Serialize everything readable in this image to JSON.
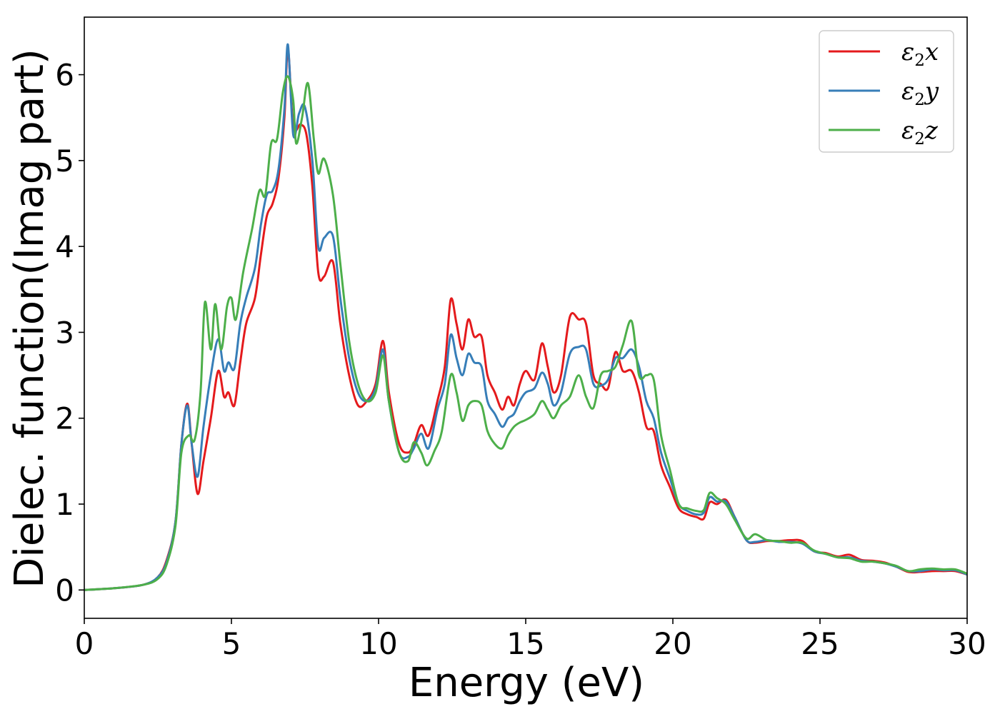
{
  "chart_data": {
    "type": "line",
    "xlabel": "Energy (eV)",
    "ylabel": "Dielec. function(Imag part)",
    "xlim": [
      0,
      30
    ],
    "ylim": [
      -0.33,
      6.67
    ],
    "xticks": [
      0,
      5,
      10,
      15,
      20,
      25,
      30
    ],
    "yticks": [
      0,
      1,
      2,
      3,
      4,
      5,
      6
    ],
    "grid": false,
    "legend_position": "top-right",
    "series": [
      {
        "name": "ε",
        "subscript": "2",
        "suffix": "x",
        "color": "#e41a1c",
        "points": [
          [
            0,
            0
          ],
          [
            1,
            0.02
          ],
          [
            2,
            0.06
          ],
          [
            2.5,
            0.15
          ],
          [
            2.8,
            0.35
          ],
          [
            3.1,
            0.8
          ],
          [
            3.3,
            1.7
          ],
          [
            3.5,
            2.17
          ],
          [
            3.65,
            1.7
          ],
          [
            3.85,
            1.12
          ],
          [
            4.05,
            1.5
          ],
          [
            4.3,
            2.0
          ],
          [
            4.55,
            2.55
          ],
          [
            4.75,
            2.25
          ],
          [
            4.9,
            2.3
          ],
          [
            5.1,
            2.15
          ],
          [
            5.3,
            2.65
          ],
          [
            5.5,
            3.1
          ],
          [
            5.8,
            3.4
          ],
          [
            6.0,
            3.9
          ],
          [
            6.2,
            4.35
          ],
          [
            6.4,
            4.5
          ],
          [
            6.6,
            4.8
          ],
          [
            6.8,
            5.5
          ],
          [
            6.92,
            6.3
          ],
          [
            7.1,
            5.4
          ],
          [
            7.35,
            5.42
          ],
          [
            7.55,
            5.3
          ],
          [
            7.75,
            4.7
          ],
          [
            7.95,
            3.7
          ],
          [
            8.15,
            3.65
          ],
          [
            8.45,
            3.82
          ],
          [
            8.7,
            3.1
          ],
          [
            9.0,
            2.5
          ],
          [
            9.3,
            2.15
          ],
          [
            9.6,
            2.2
          ],
          [
            9.9,
            2.4
          ],
          [
            10.15,
            2.9
          ],
          [
            10.35,
            2.3
          ],
          [
            10.7,
            1.7
          ],
          [
            11.0,
            1.6
          ],
          [
            11.2,
            1.7
          ],
          [
            11.45,
            1.92
          ],
          [
            11.7,
            1.8
          ],
          [
            12.0,
            2.2
          ],
          [
            12.25,
            2.6
          ],
          [
            12.45,
            3.38
          ],
          [
            12.65,
            3.1
          ],
          [
            12.85,
            2.8
          ],
          [
            13.05,
            3.15
          ],
          [
            13.25,
            2.95
          ],
          [
            13.5,
            2.95
          ],
          [
            13.7,
            2.5
          ],
          [
            13.95,
            2.3
          ],
          [
            14.2,
            2.1
          ],
          [
            14.4,
            2.25
          ],
          [
            14.6,
            2.15
          ],
          [
            14.8,
            2.4
          ],
          [
            15.0,
            2.55
          ],
          [
            15.3,
            2.45
          ],
          [
            15.55,
            2.87
          ],
          [
            15.75,
            2.6
          ],
          [
            15.95,
            2.3
          ],
          [
            16.2,
            2.5
          ],
          [
            16.5,
            3.18
          ],
          [
            16.8,
            3.15
          ],
          [
            17.05,
            3.1
          ],
          [
            17.3,
            2.5
          ],
          [
            17.55,
            2.4
          ],
          [
            17.8,
            2.35
          ],
          [
            18.05,
            2.77
          ],
          [
            18.3,
            2.55
          ],
          [
            18.6,
            2.55
          ],
          [
            18.85,
            2.3
          ],
          [
            19.1,
            1.9
          ],
          [
            19.35,
            1.85
          ],
          [
            19.6,
            1.45
          ],
          [
            19.9,
            1.2
          ],
          [
            20.2,
            0.95
          ],
          [
            20.5,
            0.88
          ],
          [
            20.8,
            0.85
          ],
          [
            21.05,
            0.83
          ],
          [
            21.25,
            1.02
          ],
          [
            21.5,
            1.0
          ],
          [
            21.8,
            1.05
          ],
          [
            22.1,
            0.85
          ],
          [
            22.5,
            0.58
          ],
          [
            22.8,
            0.55
          ],
          [
            23.2,
            0.57
          ],
          [
            23.6,
            0.57
          ],
          [
            24.0,
            0.58
          ],
          [
            24.4,
            0.57
          ],
          [
            24.8,
            0.45
          ],
          [
            25.2,
            0.43
          ],
          [
            25.6,
            0.39
          ],
          [
            26.0,
            0.41
          ],
          [
            26.4,
            0.35
          ],
          [
            26.8,
            0.34
          ],
          [
            27.2,
            0.32
          ],
          [
            27.6,
            0.27
          ],
          [
            28.0,
            0.21
          ],
          [
            28.4,
            0.21
          ],
          [
            28.8,
            0.22
          ],
          [
            29.2,
            0.22
          ],
          [
            29.6,
            0.22
          ],
          [
            30.0,
            0.18
          ]
        ]
      },
      {
        "name": "ε",
        "subscript": "2",
        "suffix": "y",
        "color": "#377eb8",
        "points": [
          [
            0,
            0
          ],
          [
            1,
            0.02
          ],
          [
            2,
            0.06
          ],
          [
            2.5,
            0.15
          ],
          [
            2.8,
            0.33
          ],
          [
            3.1,
            0.8
          ],
          [
            3.3,
            1.7
          ],
          [
            3.5,
            2.15
          ],
          [
            3.65,
            1.7
          ],
          [
            3.85,
            1.32
          ],
          [
            4.05,
            1.9
          ],
          [
            4.3,
            2.5
          ],
          [
            4.55,
            2.92
          ],
          [
            4.75,
            2.55
          ],
          [
            4.9,
            2.65
          ],
          [
            5.1,
            2.58
          ],
          [
            5.3,
            3.1
          ],
          [
            5.5,
            3.4
          ],
          [
            5.8,
            3.75
          ],
          [
            6.0,
            4.25
          ],
          [
            6.2,
            4.6
          ],
          [
            6.4,
            4.65
          ],
          [
            6.6,
            4.9
          ],
          [
            6.8,
            5.6
          ],
          [
            6.92,
            6.35
          ],
          [
            7.1,
            5.3
          ],
          [
            7.3,
            5.55
          ],
          [
            7.5,
            5.62
          ],
          [
            7.75,
            5.0
          ],
          [
            7.95,
            4.0
          ],
          [
            8.15,
            4.1
          ],
          [
            8.45,
            4.12
          ],
          [
            8.7,
            3.4
          ],
          [
            9.0,
            2.7
          ],
          [
            9.3,
            2.3
          ],
          [
            9.6,
            2.2
          ],
          [
            9.9,
            2.35
          ],
          [
            10.15,
            2.8
          ],
          [
            10.35,
            2.2
          ],
          [
            10.7,
            1.6
          ],
          [
            11.0,
            1.55
          ],
          [
            11.2,
            1.65
          ],
          [
            11.45,
            1.82
          ],
          [
            11.7,
            1.65
          ],
          [
            12.0,
            2.1
          ],
          [
            12.25,
            2.4
          ],
          [
            12.45,
            2.97
          ],
          [
            12.65,
            2.7
          ],
          [
            12.85,
            2.5
          ],
          [
            13.05,
            2.75
          ],
          [
            13.25,
            2.65
          ],
          [
            13.5,
            2.6
          ],
          [
            13.7,
            2.2
          ],
          [
            13.95,
            2.05
          ],
          [
            14.2,
            1.9
          ],
          [
            14.4,
            2.0
          ],
          [
            14.6,
            2.05
          ],
          [
            14.8,
            2.2
          ],
          [
            15.0,
            2.3
          ],
          [
            15.3,
            2.35
          ],
          [
            15.55,
            2.53
          ],
          [
            15.75,
            2.4
          ],
          [
            15.95,
            2.15
          ],
          [
            16.2,
            2.3
          ],
          [
            16.5,
            2.75
          ],
          [
            16.8,
            2.83
          ],
          [
            17.05,
            2.8
          ],
          [
            17.3,
            2.4
          ],
          [
            17.55,
            2.38
          ],
          [
            17.8,
            2.45
          ],
          [
            18.05,
            2.7
          ],
          [
            18.3,
            2.7
          ],
          [
            18.6,
            2.8
          ],
          [
            18.85,
            2.6
          ],
          [
            19.1,
            2.2
          ],
          [
            19.35,
            2.0
          ],
          [
            19.6,
            1.6
          ],
          [
            19.9,
            1.3
          ],
          [
            20.2,
            1.0
          ],
          [
            20.5,
            0.92
          ],
          [
            20.8,
            0.88
          ],
          [
            21.05,
            0.9
          ],
          [
            21.25,
            1.08
          ],
          [
            21.5,
            1.03
          ],
          [
            21.8,
            1.03
          ],
          [
            22.1,
            0.85
          ],
          [
            22.5,
            0.58
          ],
          [
            22.8,
            0.56
          ],
          [
            23.2,
            0.58
          ],
          [
            23.6,
            0.56
          ],
          [
            24.0,
            0.56
          ],
          [
            24.4,
            0.54
          ],
          [
            24.8,
            0.45
          ],
          [
            25.2,
            0.42
          ],
          [
            25.6,
            0.38
          ],
          [
            26.0,
            0.38
          ],
          [
            26.4,
            0.34
          ],
          [
            26.8,
            0.33
          ],
          [
            27.2,
            0.31
          ],
          [
            27.6,
            0.27
          ],
          [
            28.0,
            0.22
          ],
          [
            28.4,
            0.22
          ],
          [
            28.8,
            0.24
          ],
          [
            29.2,
            0.23
          ],
          [
            29.6,
            0.23
          ],
          [
            30.0,
            0.18
          ]
        ]
      },
      {
        "name": "ε",
        "subscript": "2",
        "suffix": "z",
        "color": "#4daf4a",
        "points": [
          [
            0,
            0
          ],
          [
            1,
            0.02
          ],
          [
            2,
            0.06
          ],
          [
            2.5,
            0.13
          ],
          [
            2.8,
            0.3
          ],
          [
            3.1,
            0.75
          ],
          [
            3.3,
            1.6
          ],
          [
            3.55,
            1.8
          ],
          [
            3.75,
            1.75
          ],
          [
            3.95,
            2.3
          ],
          [
            4.1,
            3.35
          ],
          [
            4.3,
            2.8
          ],
          [
            4.45,
            3.33
          ],
          [
            4.65,
            2.8
          ],
          [
            4.85,
            3.3
          ],
          [
            5.0,
            3.4
          ],
          [
            5.15,
            3.15
          ],
          [
            5.4,
            3.7
          ],
          [
            5.7,
            4.2
          ],
          [
            5.95,
            4.65
          ],
          [
            6.15,
            4.6
          ],
          [
            6.35,
            5.2
          ],
          [
            6.55,
            5.25
          ],
          [
            6.75,
            5.8
          ],
          [
            6.92,
            5.98
          ],
          [
            7.1,
            5.7
          ],
          [
            7.2,
            5.2
          ],
          [
            7.4,
            5.5
          ],
          [
            7.6,
            5.9
          ],
          [
            7.8,
            5.25
          ],
          [
            7.95,
            4.85
          ],
          [
            8.15,
            5.02
          ],
          [
            8.45,
            4.6
          ],
          [
            8.7,
            3.8
          ],
          [
            9.0,
            2.9
          ],
          [
            9.3,
            2.4
          ],
          [
            9.6,
            2.2
          ],
          [
            9.9,
            2.3
          ],
          [
            10.15,
            2.73
          ],
          [
            10.35,
            2.2
          ],
          [
            10.7,
            1.6
          ],
          [
            11.0,
            1.5
          ],
          [
            11.2,
            1.72
          ],
          [
            11.45,
            1.6
          ],
          [
            11.65,
            1.45
          ],
          [
            11.9,
            1.62
          ],
          [
            12.15,
            1.85
          ],
          [
            12.45,
            2.5
          ],
          [
            12.65,
            2.3
          ],
          [
            12.85,
            1.97
          ],
          [
            13.05,
            2.15
          ],
          [
            13.25,
            2.2
          ],
          [
            13.5,
            2.15
          ],
          [
            13.7,
            1.85
          ],
          [
            13.95,
            1.7
          ],
          [
            14.2,
            1.65
          ],
          [
            14.4,
            1.8
          ],
          [
            14.6,
            1.9
          ],
          [
            14.8,
            1.95
          ],
          [
            15.0,
            1.98
          ],
          [
            15.3,
            2.05
          ],
          [
            15.55,
            2.2
          ],
          [
            15.75,
            2.1
          ],
          [
            15.95,
            2.0
          ],
          [
            16.2,
            2.15
          ],
          [
            16.5,
            2.25
          ],
          [
            16.8,
            2.5
          ],
          [
            17.05,
            2.25
          ],
          [
            17.3,
            2.12
          ],
          [
            17.55,
            2.5
          ],
          [
            17.8,
            2.55
          ],
          [
            18.05,
            2.6
          ],
          [
            18.3,
            2.85
          ],
          [
            18.6,
            3.13
          ],
          [
            18.85,
            2.5
          ],
          [
            19.1,
            2.5
          ],
          [
            19.35,
            2.45
          ],
          [
            19.6,
            1.8
          ],
          [
            19.9,
            1.4
          ],
          [
            20.2,
            1.0
          ],
          [
            20.5,
            0.95
          ],
          [
            20.8,
            0.92
          ],
          [
            21.05,
            0.93
          ],
          [
            21.25,
            1.13
          ],
          [
            21.5,
            1.07
          ],
          [
            21.8,
            1.0
          ],
          [
            22.1,
            0.82
          ],
          [
            22.5,
            0.6
          ],
          [
            22.8,
            0.65
          ],
          [
            23.2,
            0.58
          ],
          [
            23.6,
            0.57
          ],
          [
            24.0,
            0.55
          ],
          [
            24.4,
            0.55
          ],
          [
            24.8,
            0.46
          ],
          [
            25.2,
            0.42
          ],
          [
            25.6,
            0.38
          ],
          [
            26.0,
            0.37
          ],
          [
            26.4,
            0.33
          ],
          [
            26.8,
            0.33
          ],
          [
            27.2,
            0.31
          ],
          [
            27.6,
            0.28
          ],
          [
            28.0,
            0.22
          ],
          [
            28.4,
            0.24
          ],
          [
            28.8,
            0.25
          ],
          [
            29.2,
            0.24
          ],
          [
            29.6,
            0.24
          ],
          [
            30.0,
            0.19
          ]
        ]
      }
    ]
  }
}
